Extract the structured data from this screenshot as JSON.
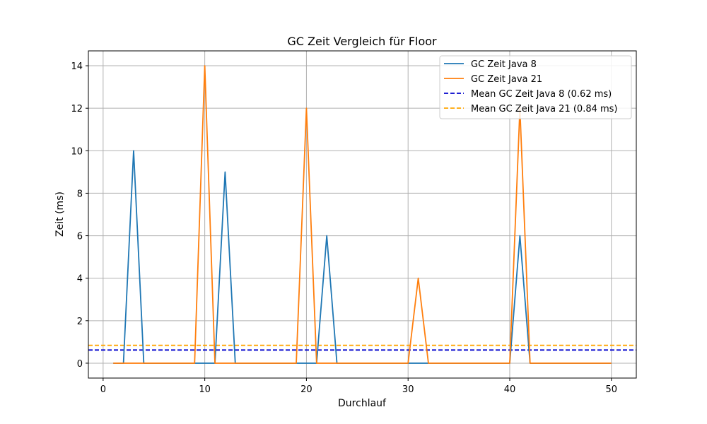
{
  "chart_data": {
    "type": "line",
    "title": "GC Zeit Vergleich für Floor",
    "xlabel": "Durchlauf",
    "ylabel": "Zeit (ms)",
    "xlim": [
      -1.45,
      52.45
    ],
    "ylim": [
      -0.7,
      14.7
    ],
    "xticks": [
      0,
      10,
      20,
      30,
      40,
      50
    ],
    "yticks": [
      0,
      2,
      4,
      6,
      8,
      10,
      12,
      14
    ],
    "grid": true,
    "legend_position": "top-right",
    "x": [
      1,
      2,
      3,
      4,
      5,
      6,
      7,
      8,
      9,
      10,
      11,
      12,
      13,
      14,
      15,
      16,
      17,
      18,
      19,
      20,
      21,
      22,
      23,
      24,
      25,
      26,
      27,
      28,
      29,
      30,
      31,
      32,
      33,
      34,
      35,
      36,
      37,
      38,
      39,
      40,
      41,
      42,
      43,
      44,
      45,
      46,
      47,
      48,
      49,
      50
    ],
    "series": [
      {
        "name": "GC Zeit Java 8",
        "color": "#1f77b4",
        "style": "solid",
        "values": [
          0,
          0,
          10,
          0,
          0,
          0,
          0,
          0,
          0,
          0,
          0,
          9,
          0,
          0,
          0,
          0,
          0,
          0,
          0,
          0,
          0,
          6,
          0,
          0,
          0,
          0,
          0,
          0,
          0,
          0,
          0,
          0,
          0,
          0,
          0,
          0,
          0,
          0,
          0,
          0,
          6,
          0,
          0,
          0,
          0,
          0,
          0,
          0,
          0,
          0
        ]
      },
      {
        "name": "GC Zeit Java 21",
        "color": "#ff7f0e",
        "style": "solid",
        "values": [
          0,
          0,
          0,
          0,
          0,
          0,
          0,
          0,
          0,
          14,
          0,
          0,
          0,
          0,
          0,
          0,
          0,
          0,
          0,
          12,
          0,
          0,
          0,
          0,
          0,
          0,
          0,
          0,
          0,
          0,
          4,
          0,
          0,
          0,
          0,
          0,
          0,
          0,
          0,
          0,
          12,
          0,
          0,
          0,
          0,
          0,
          0,
          0,
          0,
          0
        ]
      }
    ],
    "reference_lines": [
      {
        "name": "Mean GC Zeit Java 8 (0.62 ms)",
        "value": 0.62,
        "color": "#0000cc",
        "style": "dashed"
      },
      {
        "name": "Mean GC Zeit Java 21 (0.84 ms)",
        "value": 0.84,
        "color": "#ffa500",
        "style": "dashed"
      }
    ]
  }
}
